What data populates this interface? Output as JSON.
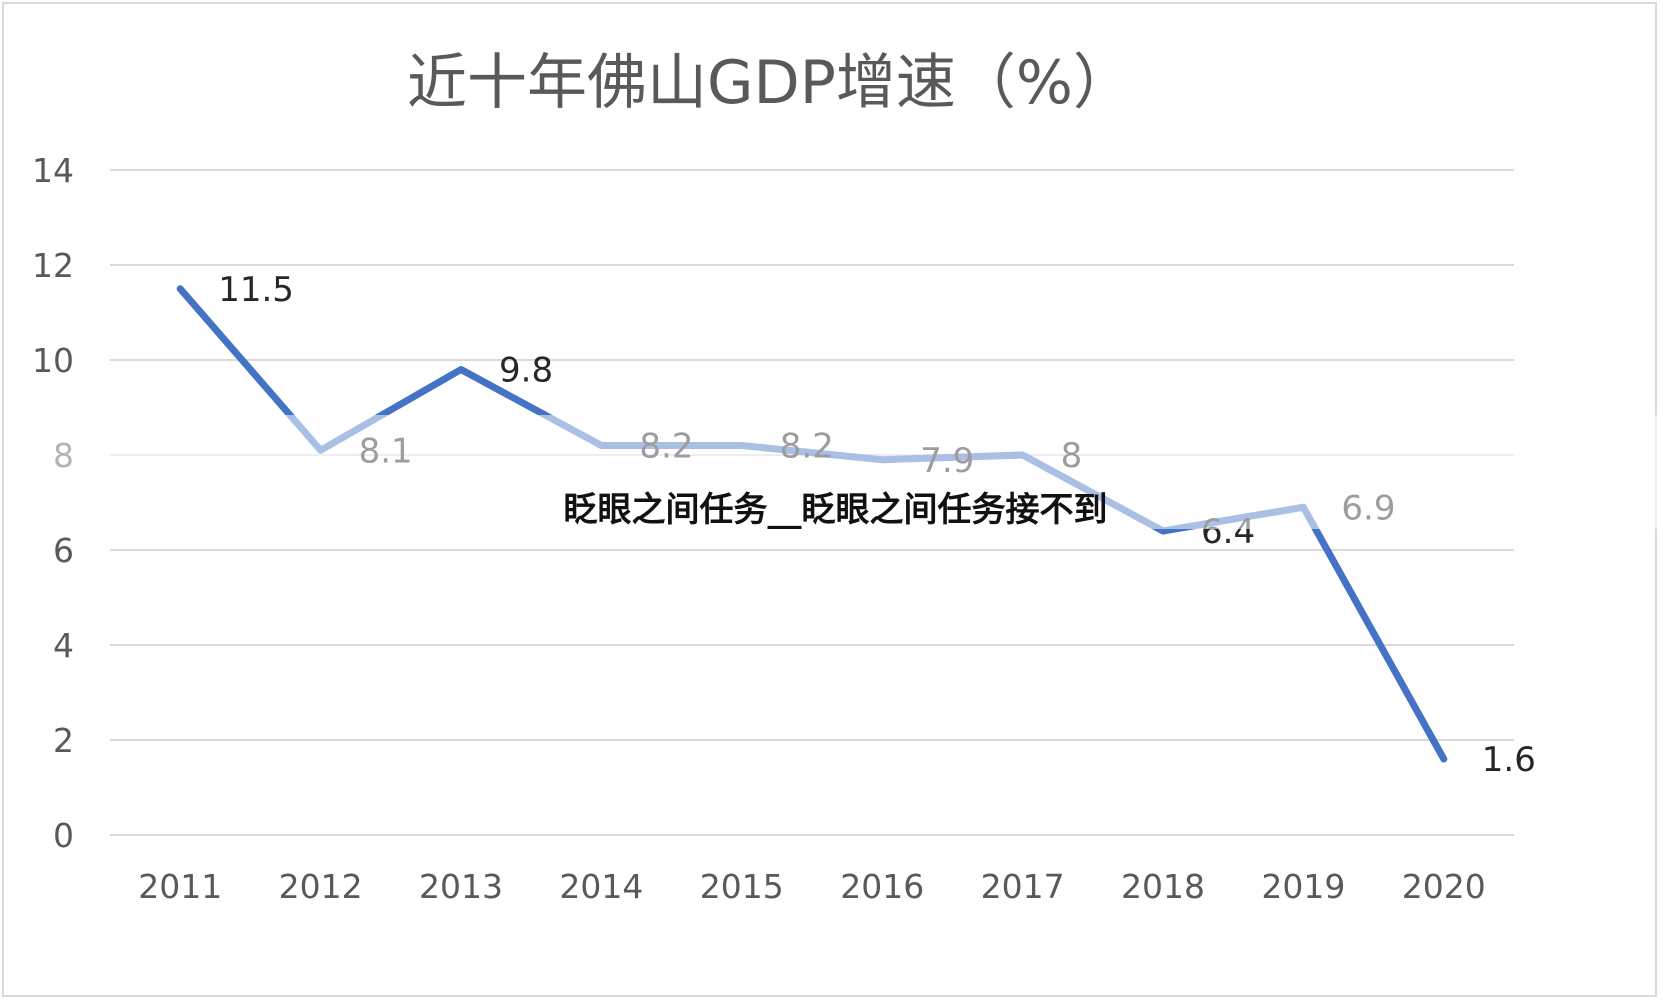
{
  "chart_data": {
    "type": "line",
    "title": "近十年佛山GDP增速（%）",
    "categories": [
      "2011",
      "2012",
      "2013",
      "2014",
      "2015",
      "2016",
      "2017",
      "2018",
      "2019",
      "2020"
    ],
    "series": [
      {
        "values": [
          11.5,
          8.1,
          9.8,
          8.2,
          8.2,
          7.9,
          8,
          6.4,
          6.9,
          1.6
        ],
        "labels": [
          "11.5",
          "8.1",
          "9.8",
          "8.2",
          "8.2",
          "7.9",
          "8",
          "6.4",
          "6.9",
          "1.6"
        ],
        "color": "#4472c4"
      }
    ],
    "ylim": [
      0,
      14
    ],
    "yticks": [
      "0",
      "2",
      "4",
      "6",
      "8",
      "10",
      "12",
      "14"
    ],
    "grid": true,
    "legend": "none"
  },
  "overlay": {
    "caption": "眨眼之间任务__眨眼之间任务接不到",
    "band_color": "#ffffff"
  }
}
